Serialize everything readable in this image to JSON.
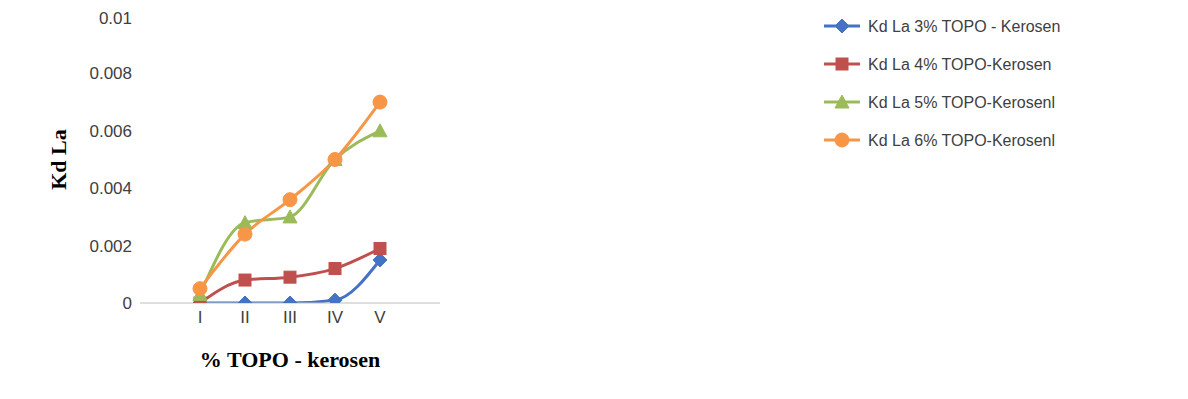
{
  "chart_data": {
    "type": "line",
    "x_label": "% TOPO - kerosen",
    "y_label": "Kd La",
    "categories": [
      "I",
      "II",
      "III",
      "IV",
      "V"
    ],
    "series": [
      {
        "name": "Kd La 3% TOPO - Kerosen",
        "color": "#4472c4",
        "marker": "diamond",
        "values": [
          0,
          0,
          0,
          0.0001,
          0.0015
        ]
      },
      {
        "name": "Kd La 4% TOPO-Kerosen",
        "color": "#c0504d",
        "marker": "square",
        "values": [
          0,
          0.0008,
          0.0009,
          0.0012,
          0.0019
        ]
      },
      {
        "name": "Kd La 5% TOPO-Kerosenl",
        "color": "#9bbb59",
        "marker": "triangle",
        "values": [
          0.0003,
          0.0028,
          0.003,
          0.005,
          0.006
        ]
      },
      {
        "name": "Kd La 6% TOPO-Kerosenl",
        "color": "#f79646",
        "marker": "circle",
        "values": [
          0.0005,
          0.0024,
          0.0036,
          0.005,
          0.007
        ]
      }
    ],
    "ylim": [
      0,
      0.01
    ],
    "yticks": [
      0,
      0.002,
      0.004,
      0.006,
      0.008,
      0.01
    ],
    "grid": false,
    "legend": "right"
  }
}
